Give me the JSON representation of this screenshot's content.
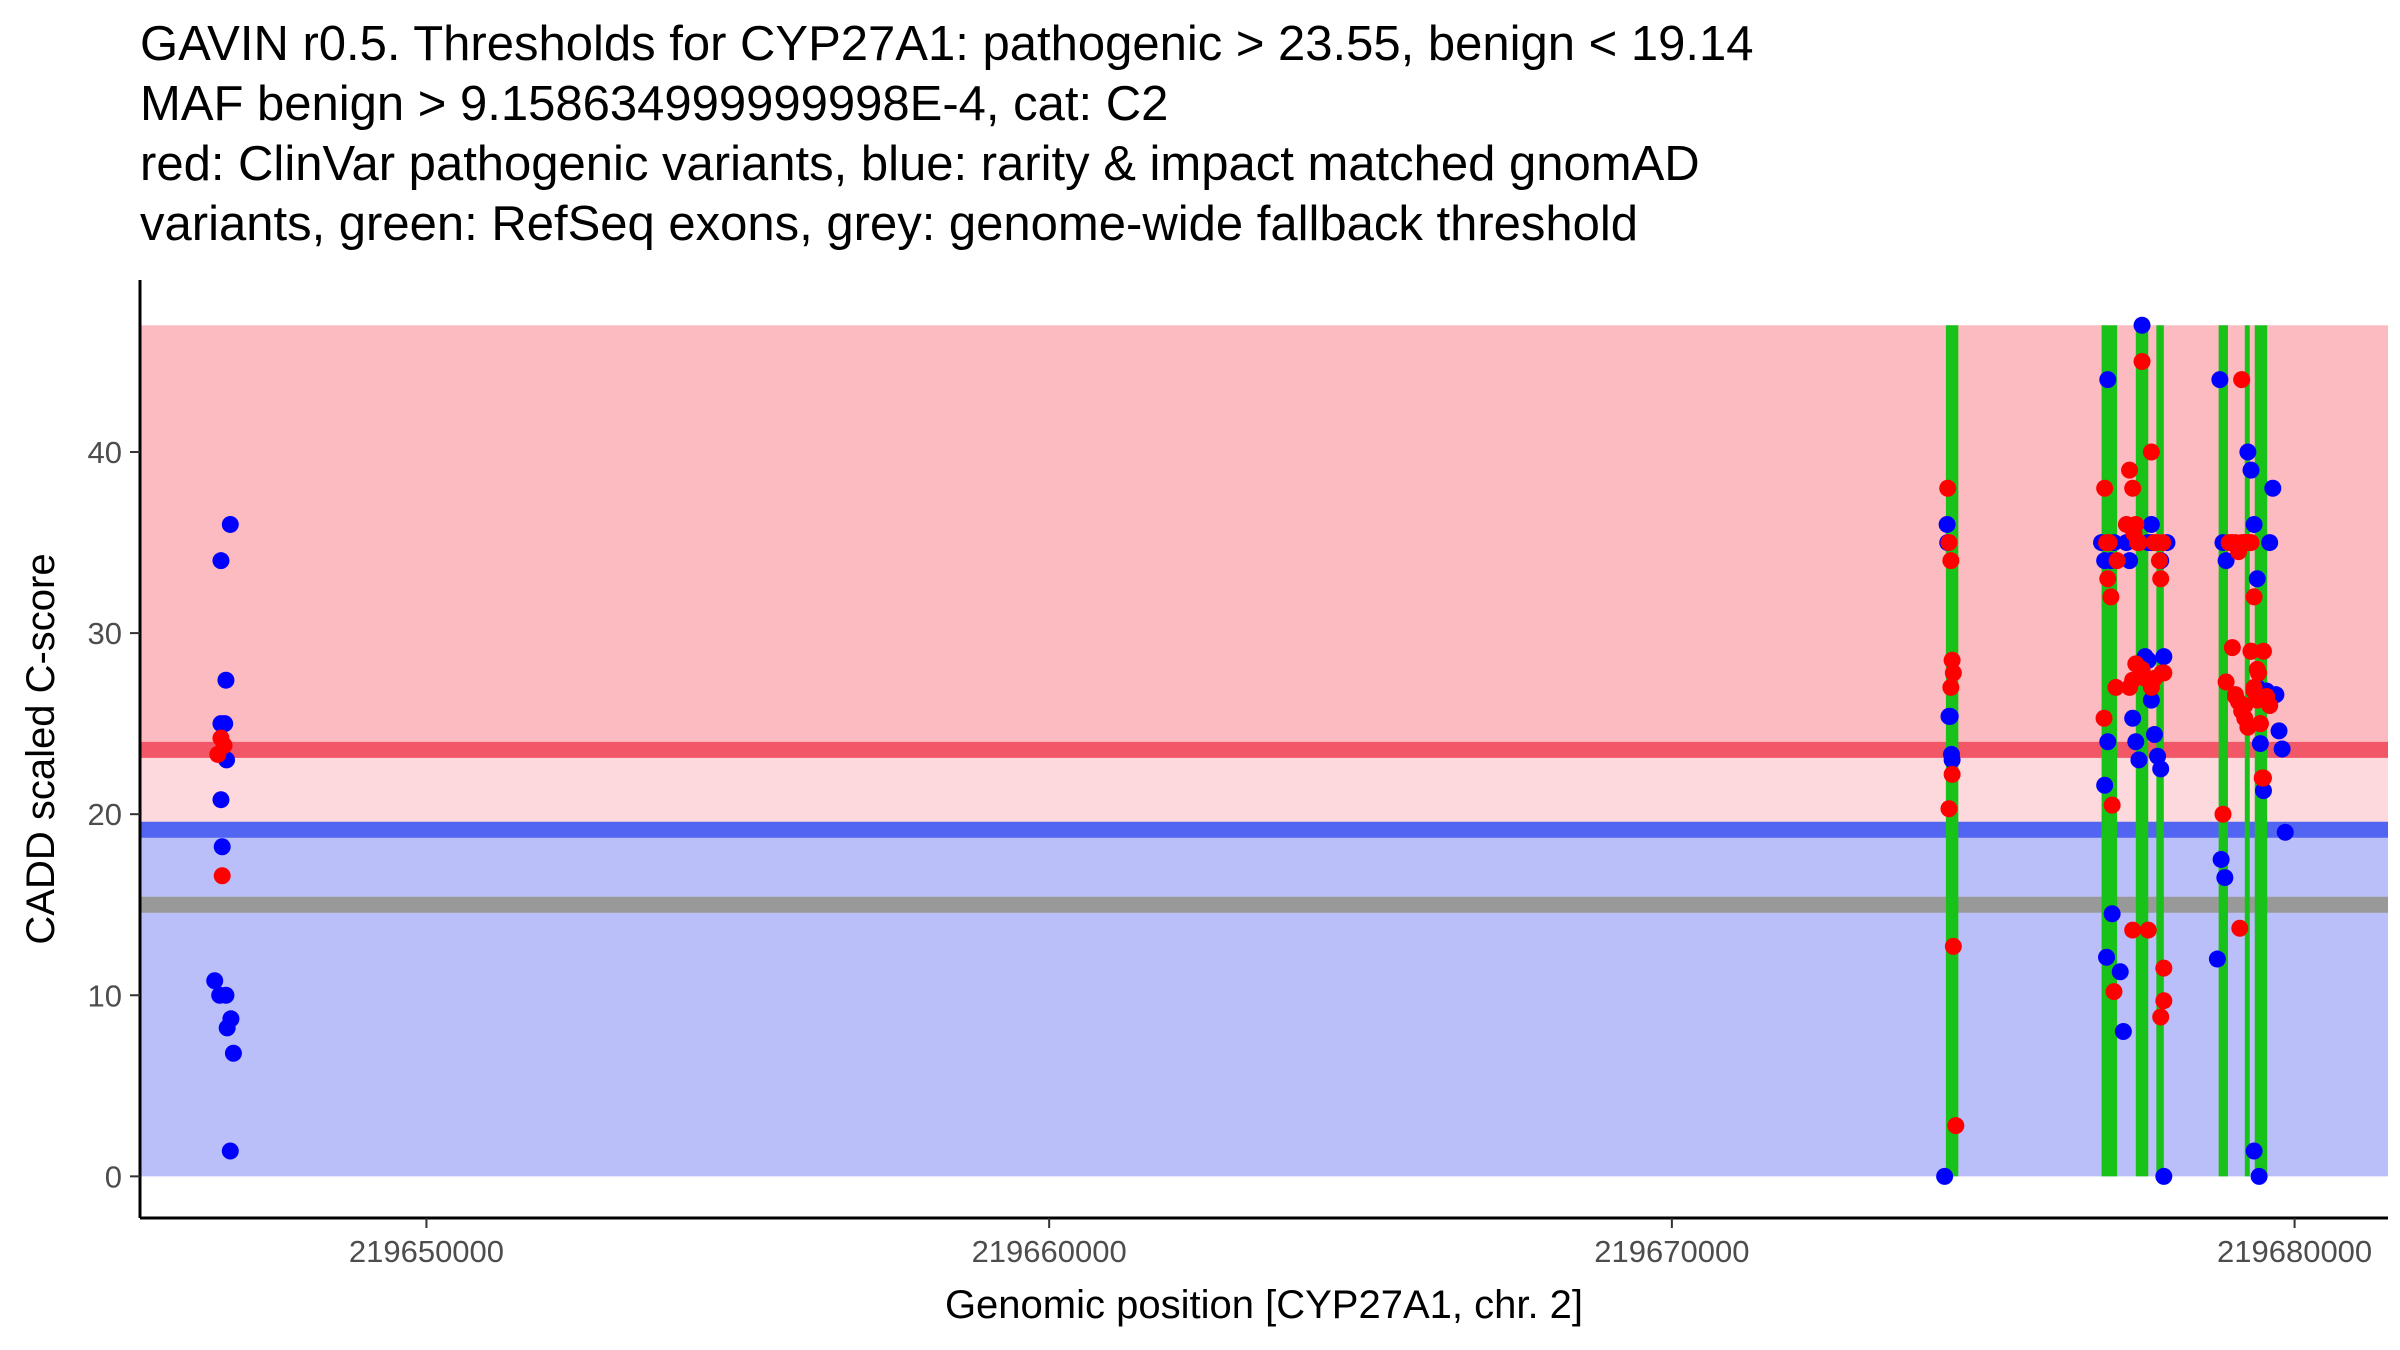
{
  "title_lines": [
    "GAVIN r0.5. Thresholds for CYP27A1: pathogenic > 23.55, benign < 19.14",
    "MAF benign > 9.158634999999998E-4, cat: C2",
    "red: ClinVar pathogenic variants, blue: rarity & impact matched gnomAD",
    "variants, green: RefSeq exons, grey: genome-wide fallback threshold"
  ],
  "chart_data": {
    "type": "scatter",
    "title": "GAVIN r0.5. Thresholds for CYP27A1: pathogenic > 23.55, benign < 19.14 MAF benign > 9.158634999999998E-4, cat: C2 red: ClinVar pathogenic variants, blue: rarity & impact matched gnomAD variants, green: RefSeq exons, grey: genome-wide fallback threshold",
    "xlabel": "Genomic position [CYP27A1, chr. 2]",
    "ylabel": "CADD scaled C-score",
    "xlim": [
      219645400,
      219681500
    ],
    "ylim": [
      -2.3,
      49.5
    ],
    "x_ticks": [
      219650000,
      219660000,
      219670000,
      219680000
    ],
    "x_tick_labels": [
      "219650000",
      "219660000",
      "219670000",
      "219680000"
    ],
    "y_ticks": [
      0,
      10,
      20,
      30,
      40
    ],
    "y_tick_labels": [
      "0",
      "10",
      "20",
      "30",
      "40"
    ],
    "grid": false,
    "colors": {
      "pathogenic_band": "#fcbbc1",
      "mid_band": "#fdd9de",
      "benign_band": "#bbbff9",
      "pathogenic_line": "#f25767",
      "benign_line": "#5265f2",
      "fallback_line": "#999999",
      "exon": "#19c219",
      "pathogenic_point": "#ff0000",
      "benign_point": "#0000ff"
    },
    "regions": {
      "x_range": [
        219645400,
        219681500
      ],
      "pathogenic": [
        23.55,
        47
      ],
      "intermediate": [
        19.14,
        23.55
      ],
      "benign": [
        0,
        19.14
      ]
    },
    "thresholds": {
      "pathogenic": 23.55,
      "benign": 19.14,
      "fallback": 15.0
    },
    "exons": [
      [
        219674400,
        219674600
      ],
      [
        219676900,
        219677150
      ],
      [
        219677450,
        219677650
      ],
      [
        219677780,
        219677900
      ],
      [
        219678780,
        219678930
      ],
      [
        219679200,
        219679280
      ],
      [
        219679360,
        219679560
      ]
    ],
    "exon_y_range": [
      0,
      47
    ],
    "series": [
      {
        "name": "ClinVar pathogenic variants",
        "color": "#ff0000",
        "x": [
          219646700,
          219646750,
          219646650,
          219646720,
          219674430,
          219674450,
          219674480,
          219674500,
          219674520,
          219674480,
          219674500,
          219674450,
          219674520,
          219674560,
          219676950,
          219677000,
          219676980,
          219677020,
          219677050,
          219676940,
          219677070,
          219677100,
          219677130,
          219677150,
          219677300,
          219677350,
          219677400,
          219677450,
          219677480,
          219677500,
          219677550,
          219677700,
          219677750,
          219677800,
          219677830,
          219677850,
          219677870,
          219677900,
          219677900,
          219677350,
          219677400,
          219677450,
          219677550,
          219677600,
          219677500,
          219677650,
          219677700,
          219677850,
          219677880,
          219677750,
          219677900,
          219677420,
          219677400,
          219678850,
          219678900,
          219678950,
          219679000,
          219679050,
          219679100,
          219679150,
          219679200,
          219679250,
          219679300,
          219679350,
          219679400,
          219679420,
          219679450,
          219679480,
          219679500,
          219679550,
          219679600,
          219679000,
          219679050,
          219679100,
          219679150,
          219679200,
          219679250,
          219679300,
          219679350,
          219679400,
          219679120,
          219679150,
          219679300,
          219679350,
          219679450,
          219679500,
          219679200,
          219679050
        ],
        "y": [
          24.2,
          23.8,
          23.3,
          16.6,
          38.0,
          35.0,
          34.0,
          28.5,
          27.8,
          27.0,
          22.2,
          20.3,
          12.7,
          2.8,
          38.0,
          33.0,
          35.0,
          35.0,
          32.0,
          25.3,
          20.5,
          10.2,
          27.0,
          34.0,
          36.0,
          39.0,
          38.0,
          36.0,
          35.0,
          35.0,
          45.0,
          40.0,
          35.0,
          35.0,
          34.0,
          33.0,
          27.8,
          11.5,
          9.7,
          27.0,
          27.4,
          28.3,
          28.0,
          27.5,
          35.0,
          13.6,
          27.0,
          8.8,
          35.0,
          27.5,
          27.8,
          35.5,
          13.6,
          20.0,
          27.3,
          35.0,
          35.0,
          35.0,
          34.5,
          44.0,
          35.0,
          35.0,
          35.0,
          32.0,
          28.0,
          27.8,
          25.0,
          22.0,
          29.0,
          26.5,
          26.0,
          29.2,
          26.6,
          26.2,
          25.7,
          25.3,
          24.8,
          29.0,
          26.8,
          26.3,
          13.7,
          35.0,
          29.0,
          27.0,
          25.0,
          22.0,
          26.0,
          26.5
        ]
      },
      {
        "name": "Rarity & impact matched gnomAD variants",
        "color": "#0000ff",
        "x": [
          219646850,
          219646700,
          219646780,
          219646700,
          219646760,
          219646790,
          219646700,
          219646720,
          219646600,
          219646680,
          219646780,
          219646860,
          219646800,
          219646900,
          219646850,
          219674420,
          219674430,
          219674470,
          219674490,
          219674500,
          219674450,
          219674380,
          219677000,
          219676950,
          219676900,
          219677050,
          219677100,
          219677000,
          219676950,
          219677070,
          219676980,
          219677200,
          219677250,
          219677300,
          219677350,
          219677400,
          219677450,
          219677500,
          219677550,
          219677600,
          219677650,
          219677700,
          219677750,
          219677800,
          219677850,
          219677900,
          219677950,
          219677650,
          219677700,
          219677850,
          219677900,
          219677700,
          219678800,
          219678850,
          219678900,
          219678820,
          219678880,
          219678760,
          219679200,
          219679250,
          219679300,
          219679350,
          219679400,
          219679450,
          219679500,
          219679550,
          219679600,
          219679650,
          219679700,
          219679750,
          219679800,
          219679850,
          219679400,
          219679350,
          219679430
        ],
        "y": [
          36.0,
          34.0,
          27.4,
          25.0,
          25.0,
          23.0,
          20.8,
          18.2,
          10.8,
          10.0,
          10.0,
          8.7,
          8.2,
          6.8,
          1.4,
          36.0,
          35.0,
          25.4,
          23.3,
          23.0,
          25.4,
          0.0,
          44.0,
          34.0,
          35.0,
          34.0,
          35.0,
          24.0,
          21.6,
          14.5,
          12.1,
          11.3,
          8.0,
          35.0,
          34.0,
          25.3,
          24.0,
          23.0,
          47.0,
          28.7,
          28.5,
          26.3,
          24.4,
          23.2,
          22.5,
          28.7,
          35.0,
          35.0,
          35.0,
          34.0,
          0.0,
          36.0,
          44.0,
          35.0,
          34.0,
          17.5,
          16.5,
          12.0,
          35.0,
          40.0,
          39.0,
          36.0,
          33.0,
          23.9,
          21.3,
          26.8,
          35.0,
          38.0,
          26.6,
          24.6,
          23.6,
          19.0,
          27.0,
          1.4,
          0.0
        ]
      }
    ]
  }
}
